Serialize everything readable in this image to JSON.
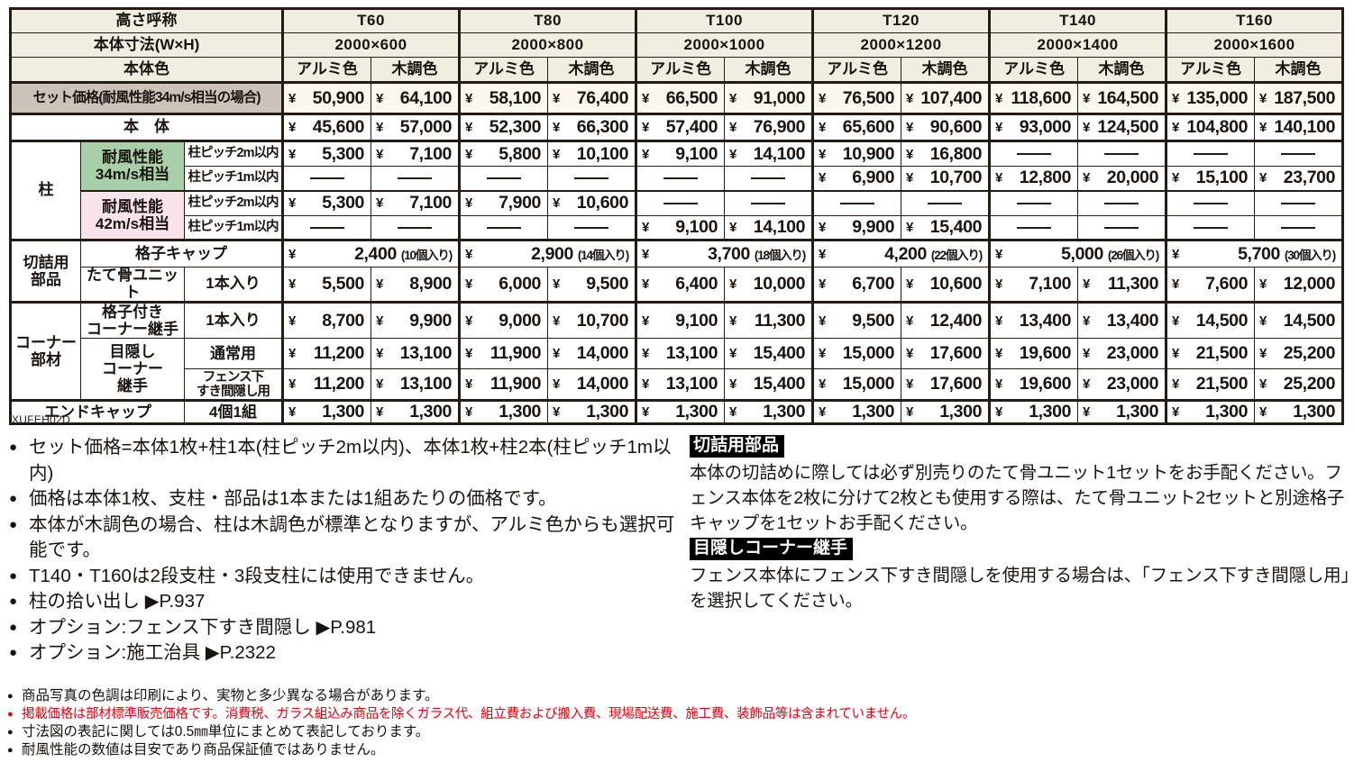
{
  "currency": "¥",
  "colors": {
    "ink": "#241b15",
    "beige": "#f0ede1",
    "taupe": "#cbc3b9",
    "green": "#a9cfa9",
    "pink": "#f8e3eb",
    "cream": "#fbf9ef",
    "red": "#e60012"
  },
  "table": {
    "code": "XUFEH02D",
    "color_cols": [
      "アルミ色",
      "木調色"
    ],
    "row_headers": {
      "height_label": "高さ呼称",
      "size_label": "本体寸法(W×H)",
      "color_label": "本体色",
      "set_price_label": "セット価格(耐風性能34m/s相当の場合)",
      "body_label": "本　体",
      "pillar_label": "柱",
      "wind34_label": "耐風性能\n34m/s相当",
      "wind42_label": "耐風性能\n42m/s相当",
      "pitch2_label": "柱ピッチ2m以内",
      "pitch1_label": "柱ピッチ1m以内",
      "cut_parts_label": "切詰用\n部品",
      "lattice_cap_label": "格子キャップ",
      "vertical_unit_label": "たて骨ユニット",
      "one_piece_label": "1本入り",
      "corner_parts_label": "コーナー\n部材",
      "lattice_corner_label": "格子付き\nコーナー継手",
      "privacy_corner_label": "目隠し\nコーナー\n継手",
      "normal_use_label": "通常用",
      "under_fence_label": "フェンス下\nすき間隠し用",
      "end_cap_label": "エンドキャップ",
      "four_set_label": "4個1組"
    },
    "columns": [
      {
        "height": "T60",
        "size": "2000×600",
        "set_price": [
          "50,900",
          "64,100"
        ],
        "body": [
          "45,600",
          "57,000"
        ],
        "pillar_34_2m": [
          "5,300",
          "7,100"
        ],
        "pillar_34_1m": [
          null,
          null
        ],
        "pillar_42_2m": [
          "5,300",
          "7,100"
        ],
        "pillar_42_1m": [
          null,
          null
        ],
        "lattice_cap": {
          "price": "2,400",
          "qty": "(10個入り)"
        },
        "vertical_unit": [
          "5,500",
          "8,900"
        ],
        "corner_lattice": [
          "8,700",
          "9,900"
        ],
        "privacy_normal": [
          "11,200",
          "13,100"
        ],
        "privacy_under": [
          "11,200",
          "13,100"
        ],
        "end_cap": [
          "1,300",
          "1,300"
        ]
      },
      {
        "height": "T80",
        "size": "2000×800",
        "set_price": [
          "58,100",
          "76,400"
        ],
        "body": [
          "52,300",
          "66,300"
        ],
        "pillar_34_2m": [
          "5,800",
          "10,100"
        ],
        "pillar_34_1m": [
          null,
          null
        ],
        "pillar_42_2m": [
          "7,900",
          "10,600"
        ],
        "pillar_42_1m": [
          null,
          null
        ],
        "lattice_cap": {
          "price": "2,900",
          "qty": "(14個入り)"
        },
        "vertical_unit": [
          "6,000",
          "9,500"
        ],
        "corner_lattice": [
          "9,000",
          "10,700"
        ],
        "privacy_normal": [
          "11,900",
          "14,000"
        ],
        "privacy_under": [
          "11,900",
          "14,000"
        ],
        "end_cap": [
          "1,300",
          "1,300"
        ]
      },
      {
        "height": "T100",
        "size": "2000×1000",
        "set_price": [
          "66,500",
          "91,000"
        ],
        "body": [
          "57,400",
          "76,900"
        ],
        "pillar_34_2m": [
          "9,100",
          "14,100"
        ],
        "pillar_34_1m": [
          null,
          null
        ],
        "pillar_42_2m": [
          null,
          null
        ],
        "pillar_42_1m": [
          "9,100",
          "14,100"
        ],
        "lattice_cap": {
          "price": "3,700",
          "qty": "(18個入り)"
        },
        "vertical_unit": [
          "6,400",
          "10,000"
        ],
        "corner_lattice": [
          "9,100",
          "11,300"
        ],
        "privacy_normal": [
          "13,100",
          "15,400"
        ],
        "privacy_under": [
          "13,100",
          "15,400"
        ],
        "end_cap": [
          "1,300",
          "1,300"
        ]
      },
      {
        "height": "T120",
        "size": "2000×1200",
        "set_price": [
          "76,500",
          "107,400"
        ],
        "body": [
          "65,600",
          "90,600"
        ],
        "pillar_34_2m": [
          "10,900",
          "16,800"
        ],
        "pillar_34_1m": [
          "6,900",
          "10,700"
        ],
        "pillar_42_2m": [
          null,
          null
        ],
        "pillar_42_1m": [
          "9,900",
          "15,400"
        ],
        "lattice_cap": {
          "price": "4,200",
          "qty": "(22個入り)"
        },
        "vertical_unit": [
          "6,700",
          "10,600"
        ],
        "corner_lattice": [
          "9,500",
          "12,400"
        ],
        "privacy_normal": [
          "15,000",
          "17,600"
        ],
        "privacy_under": [
          "15,000",
          "17,600"
        ],
        "end_cap": [
          "1,300",
          "1,300"
        ]
      },
      {
        "height": "T140",
        "size": "2000×1400",
        "set_price": [
          "118,600",
          "164,500"
        ],
        "body": [
          "93,000",
          "124,500"
        ],
        "pillar_34_2m": [
          null,
          null
        ],
        "pillar_34_1m": [
          "12,800",
          "20,000"
        ],
        "pillar_42_2m": [
          null,
          null
        ],
        "pillar_42_1m": [
          null,
          null
        ],
        "lattice_cap": {
          "price": "5,000",
          "qty": "(26個入り)"
        },
        "vertical_unit": [
          "7,100",
          "11,300"
        ],
        "corner_lattice": [
          "13,400",
          "13,400"
        ],
        "privacy_normal": [
          "19,600",
          "23,000"
        ],
        "privacy_under": [
          "19,600",
          "23,000"
        ],
        "end_cap": [
          "1,300",
          "1,300"
        ]
      },
      {
        "height": "T160",
        "size": "2000×1600",
        "set_price": [
          "135,000",
          "187,500"
        ],
        "body": [
          "104,800",
          "140,100"
        ],
        "pillar_34_2m": [
          null,
          null
        ],
        "pillar_34_1m": [
          "15,100",
          "23,700"
        ],
        "pillar_42_2m": [
          null,
          null
        ],
        "pillar_42_1m": [
          null,
          null
        ],
        "lattice_cap": {
          "price": "5,700",
          "qty": "(30個入り)"
        },
        "vertical_unit": [
          "7,600",
          "12,000"
        ],
        "corner_lattice": [
          "14,500",
          "14,500"
        ],
        "privacy_normal": [
          "21,500",
          "25,200"
        ],
        "privacy_under": [
          "21,500",
          "25,200"
        ],
        "end_cap": [
          "1,300",
          "1,300"
        ]
      }
    ]
  },
  "notes_left": [
    "セット価格=本体1枚+柱1本(柱ピッチ2m以内)、本体1枚+柱2本(柱ピッチ1m以内)",
    "価格は本体1枚、支柱・部品は1本または1組あたりの価格です。",
    "本体が木調色の場合、柱は木調色が標準となりますが、アルミ色からも選択可能です。",
    "T140・T160は2段支柱・3段支柱には使用できません。",
    "柱の拾い出し ▶P.937",
    "オプション:フェンス下すき間隠し ▶P.981",
    "オプション:施工治具 ▶P.2322"
  ],
  "notes_right": [
    {
      "title": "切詰用部品",
      "body": "本体の切詰めに際しては必ず別売りのたて骨ユニット1セットをお手配ください。フェンス本体を2枚に分けて2枚とも使用する際は、たて骨ユニット2セットと別途格子キャップを1セットお手配ください。"
    },
    {
      "title": "目隠しコーナー継手",
      "body": "フェンス本体にフェンス下すき間隠しを使用する場合は、「フェンス下すき間隠し用」を選択してください。"
    }
  ],
  "footer_notes": [
    {
      "text": "商品写真の色調は印刷により、実物と多少異なる場合があります。",
      "emphasis": false
    },
    {
      "text": "掲載価格は部材標準販売価格です。消費税、ガラス組込み商品を除くガラス代、組立費および搬入費、現場配送費、施工費、装飾品等は含まれていません。",
      "emphasis": true
    },
    {
      "text": "寸法図の表記に関しては0.5㎜単位にまとめて表記しております。",
      "emphasis": false
    },
    {
      "text": "耐風性能の数値は目安であり商品保証値ではありません。",
      "emphasis": false
    }
  ]
}
